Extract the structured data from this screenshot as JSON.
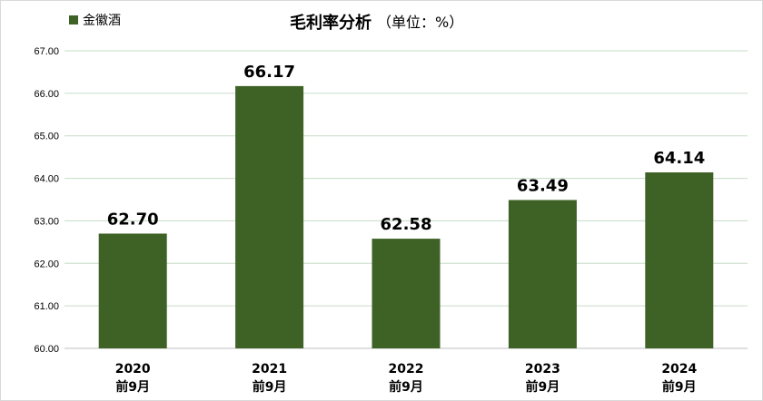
{
  "chart_data": {
    "type": "bar",
    "title": "毛利率分析",
    "title_suffix": "（单位：%）",
    "categories": [
      [
        "2020",
        "前9月"
      ],
      [
        "2021",
        "前9月"
      ],
      [
        "2022",
        "前9月"
      ],
      [
        "2023",
        "前9月"
      ],
      [
        "2024",
        "前9月"
      ]
    ],
    "series": [
      {
        "name": "金徽酒",
        "color": "#3e6125",
        "values": [
          62.7,
          66.17,
          62.58,
          63.49,
          64.14
        ],
        "value_labels": [
          "62.70",
          "66.17",
          "62.58",
          "63.49",
          "64.14"
        ]
      }
    ],
    "ylim": [
      60,
      67
    ],
    "yticks": [
      60,
      61,
      62,
      63,
      64,
      65,
      66,
      67
    ],
    "ytick_labels": [
      "60.00",
      "61.00",
      "62.00",
      "63.00",
      "64.00",
      "65.00",
      "66.00",
      "67.00"
    ],
    "grid": true,
    "legend_position": "top-left"
  }
}
